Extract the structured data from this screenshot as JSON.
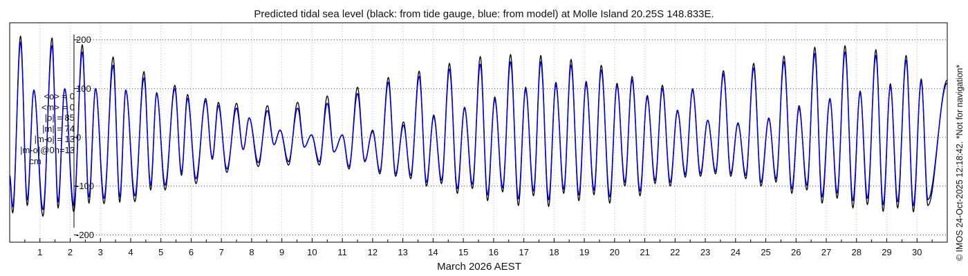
{
  "chart_data": {
    "type": "line",
    "title": "Predicted tidal sea level (black: from tide gauge, blue: from model) at Molle Island 20.25S 148.833E.",
    "xlabel": "March 2026 AEST",
    "ylabel": "",
    "x_unit": "day of March 2026",
    "xlim": [
      0,
      31
    ],
    "ylim": [
      -215,
      235
    ],
    "yticks": [
      -200,
      -100,
      0,
      100,
      200
    ],
    "xticks": [
      1,
      2,
      3,
      4,
      5,
      6,
      7,
      8,
      9,
      10,
      11,
      12,
      13,
      14,
      15,
      16,
      17,
      18,
      19,
      20,
      21,
      22,
      23,
      24,
      25,
      26,
      27,
      28,
      29,
      30
    ],
    "grid": true,
    "side_note": "© IMOS 24-Oct-2025 12:18:42. *Not for navigation*",
    "stats": [
      "<o> = 0",
      "<m> = 0",
      "|o| = 85",
      "|m| = 74",
      "|m-o| = 13",
      "|m-o|@0h=13",
      "cm"
    ],
    "series": [
      {
        "name": "tide gauge",
        "color": "#000000",
        "highs": [
          [
            0.36,
            208
          ],
          [
            0.8,
            97
          ],
          [
            1.4,
            204
          ],
          [
            1.82,
            100
          ],
          [
            2.4,
            190
          ],
          [
            2.84,
            100
          ],
          [
            3.42,
            165
          ],
          [
            3.84,
            97
          ],
          [
            4.44,
            135
          ],
          [
            4.86,
            92
          ],
          [
            5.46,
            107
          ],
          [
            5.88,
            88
          ],
          [
            6.48,
            80
          ],
          [
            6.9,
            72
          ],
          [
            7.5,
            70
          ],
          [
            7.92,
            40
          ],
          [
            8.52,
            65
          ],
          [
            8.94,
            15
          ],
          [
            9.52,
            72
          ],
          [
            9.98,
            5
          ],
          [
            10.5,
            85
          ],
          [
            11.0,
            5
          ],
          [
            11.5,
            103
          ],
          [
            12.0,
            15
          ],
          [
            12.52,
            123
          ],
          [
            13.02,
            32
          ],
          [
            13.54,
            136
          ],
          [
            14.02,
            46
          ],
          [
            14.54,
            152
          ],
          [
            15.04,
            62
          ],
          [
            15.56,
            166
          ],
          [
            16.04,
            83
          ],
          [
            16.56,
            170
          ],
          [
            17.06,
            103
          ],
          [
            17.56,
            168
          ],
          [
            18.06,
            113
          ],
          [
            18.56,
            160
          ],
          [
            19.06,
            115
          ],
          [
            19.56,
            148
          ],
          [
            20.08,
            111
          ],
          [
            20.58,
            125
          ],
          [
            21.08,
            86
          ],
          [
            21.58,
            107
          ],
          [
            22.08,
            56
          ],
          [
            22.58,
            100
          ],
          [
            23.08,
            35
          ],
          [
            23.6,
            137
          ],
          [
            24.08,
            30
          ],
          [
            24.6,
            152
          ],
          [
            25.1,
            40
          ],
          [
            25.6,
            167
          ],
          [
            26.1,
            65
          ],
          [
            26.62,
            185
          ],
          [
            27.12,
            80
          ],
          [
            27.62,
            188
          ],
          [
            28.12,
            95
          ],
          [
            28.64,
            180
          ],
          [
            29.12,
            110
          ],
          [
            29.64,
            168
          ],
          [
            30.14,
            120
          ]
        ],
        "lows": [
          [
            0.1,
            -155
          ],
          [
            0.58,
            -140
          ],
          [
            1.1,
            -162
          ],
          [
            1.6,
            -145
          ],
          [
            2.12,
            -153
          ],
          [
            2.62,
            -135
          ],
          [
            3.12,
            -136
          ],
          [
            3.64,
            -133
          ],
          [
            4.14,
            -132
          ],
          [
            4.66,
            -108
          ],
          [
            5.14,
            -108
          ],
          [
            5.68,
            -78
          ],
          [
            6.16,
            -95
          ],
          [
            6.7,
            -45
          ],
          [
            7.18,
            -72
          ],
          [
            7.72,
            -25
          ],
          [
            8.22,
            -60
          ],
          [
            8.74,
            -15
          ],
          [
            9.22,
            -57
          ],
          [
            9.74,
            -20
          ],
          [
            10.24,
            -57
          ],
          [
            10.72,
            -30
          ],
          [
            11.22,
            -65
          ],
          [
            11.74,
            -50
          ],
          [
            12.24,
            -75
          ],
          [
            12.76,
            -80
          ],
          [
            13.26,
            -85
          ],
          [
            13.78,
            -100
          ],
          [
            14.28,
            -95
          ],
          [
            14.8,
            -115
          ],
          [
            15.3,
            -105
          ],
          [
            15.8,
            -130
          ],
          [
            16.3,
            -112
          ],
          [
            16.82,
            -140
          ],
          [
            17.32,
            -120
          ],
          [
            17.82,
            -142
          ],
          [
            18.32,
            -115
          ],
          [
            18.82,
            -130
          ],
          [
            19.32,
            -118
          ],
          [
            19.84,
            -135
          ],
          [
            20.34,
            -100
          ],
          [
            20.84,
            -120
          ],
          [
            21.34,
            -95
          ],
          [
            21.84,
            -100
          ],
          [
            22.34,
            -82
          ],
          [
            22.84,
            -80
          ],
          [
            23.34,
            -75
          ],
          [
            23.84,
            -80
          ],
          [
            24.34,
            -85
          ],
          [
            24.84,
            -100
          ],
          [
            25.34,
            -92
          ],
          [
            25.86,
            -115
          ],
          [
            26.36,
            -108
          ],
          [
            26.86,
            -135
          ],
          [
            27.36,
            -125
          ],
          [
            27.88,
            -145
          ],
          [
            28.36,
            -138
          ],
          [
            28.88,
            -152
          ],
          [
            29.36,
            -145
          ],
          [
            29.88,
            -153
          ],
          [
            30.36,
            -140
          ]
        ],
        "start": [
          0.0,
          -80
        ],
        "end": [
          31.0,
          118
        ]
      },
      {
        "name": "model",
        "color": "#0000ee",
        "highs": [
          [
            0.36,
            195
          ],
          [
            0.8,
            97
          ],
          [
            1.4,
            188
          ],
          [
            1.82,
            100
          ],
          [
            2.4,
            175
          ],
          [
            2.84,
            100
          ],
          [
            3.42,
            148
          ],
          [
            3.84,
            97
          ],
          [
            4.44,
            122
          ],
          [
            4.86,
            90
          ],
          [
            5.46,
            100
          ],
          [
            5.88,
            80
          ],
          [
            6.48,
            75
          ],
          [
            6.9,
            65
          ],
          [
            7.5,
            60
          ],
          [
            7.92,
            40
          ],
          [
            8.52,
            55
          ],
          [
            8.94,
            15
          ],
          [
            9.52,
            60
          ],
          [
            9.98,
            5
          ],
          [
            10.5,
            70
          ],
          [
            11.0,
            5
          ],
          [
            11.5,
            90
          ],
          [
            12.0,
            12
          ],
          [
            12.52,
            113
          ],
          [
            13.02,
            25
          ],
          [
            13.54,
            125
          ],
          [
            14.02,
            42
          ],
          [
            14.54,
            140
          ],
          [
            15.04,
            60
          ],
          [
            15.56,
            150
          ],
          [
            16.04,
            78
          ],
          [
            16.56,
            155
          ],
          [
            17.06,
            98
          ],
          [
            17.56,
            155
          ],
          [
            18.06,
            108
          ],
          [
            18.56,
            148
          ],
          [
            19.06,
            110
          ],
          [
            19.56,
            138
          ],
          [
            20.08,
            106
          ],
          [
            20.58,
            118
          ],
          [
            21.08,
            82
          ],
          [
            21.58,
            100
          ],
          [
            22.08,
            54
          ],
          [
            22.58,
            97
          ],
          [
            23.08,
            35
          ],
          [
            23.6,
            130
          ],
          [
            24.08,
            28
          ],
          [
            24.6,
            142
          ],
          [
            25.1,
            38
          ],
          [
            25.6,
            155
          ],
          [
            26.1,
            60
          ],
          [
            26.62,
            172
          ],
          [
            27.12,
            78
          ],
          [
            27.62,
            175
          ],
          [
            28.12,
            92
          ],
          [
            28.64,
            168
          ],
          [
            29.12,
            105
          ],
          [
            29.64,
            158
          ],
          [
            30.14,
            115
          ]
        ],
        "lows": [
          [
            0.1,
            -142
          ],
          [
            0.58,
            -128
          ],
          [
            1.1,
            -148
          ],
          [
            1.6,
            -132
          ],
          [
            2.12,
            -140
          ],
          [
            2.62,
            -122
          ],
          [
            3.12,
            -125
          ],
          [
            3.64,
            -122
          ],
          [
            4.14,
            -120
          ],
          [
            4.66,
            -98
          ],
          [
            5.14,
            -98
          ],
          [
            5.68,
            -72
          ],
          [
            6.16,
            -85
          ],
          [
            6.7,
            -42
          ],
          [
            7.18,
            -65
          ],
          [
            7.72,
            -25
          ],
          [
            8.22,
            -52
          ],
          [
            8.74,
            -15
          ],
          [
            9.22,
            -50
          ],
          [
            9.74,
            -20
          ],
          [
            10.24,
            -50
          ],
          [
            10.72,
            -30
          ],
          [
            11.22,
            -60
          ],
          [
            11.74,
            -48
          ],
          [
            12.24,
            -70
          ],
          [
            12.76,
            -75
          ],
          [
            13.26,
            -78
          ],
          [
            13.78,
            -92
          ],
          [
            14.28,
            -88
          ],
          [
            14.8,
            -105
          ],
          [
            15.3,
            -96
          ],
          [
            15.8,
            -118
          ],
          [
            16.3,
            -103
          ],
          [
            16.82,
            -126
          ],
          [
            17.32,
            -110
          ],
          [
            17.82,
            -128
          ],
          [
            18.32,
            -106
          ],
          [
            18.82,
            -118
          ],
          [
            19.32,
            -108
          ],
          [
            19.84,
            -122
          ],
          [
            20.34,
            -92
          ],
          [
            20.84,
            -110
          ],
          [
            21.34,
            -88
          ],
          [
            21.84,
            -92
          ],
          [
            22.34,
            -76
          ],
          [
            22.84,
            -74
          ],
          [
            23.34,
            -70
          ],
          [
            23.84,
            -74
          ],
          [
            24.34,
            -78
          ],
          [
            24.84,
            -92
          ],
          [
            25.34,
            -85
          ],
          [
            25.86,
            -105
          ],
          [
            26.36,
            -98
          ],
          [
            26.86,
            -122
          ],
          [
            27.36,
            -114
          ],
          [
            27.88,
            -130
          ],
          [
            28.36,
            -125
          ],
          [
            28.88,
            -138
          ],
          [
            29.36,
            -132
          ],
          [
            29.88,
            -140
          ],
          [
            30.36,
            -128
          ]
        ],
        "start": [
          0.0,
          -78
        ],
        "end": [
          31.0,
          112
        ]
      }
    ]
  }
}
